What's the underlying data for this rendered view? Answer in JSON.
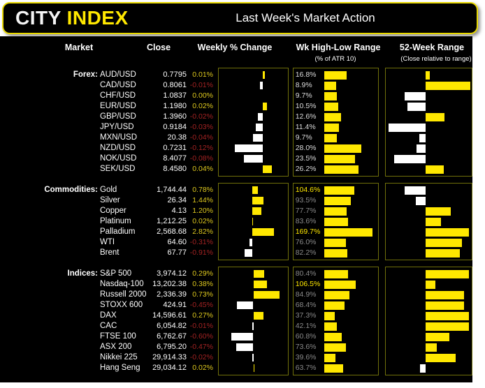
{
  "header": {
    "logo_city": "CITY ",
    "logo_index": "INDEX",
    "title": "Last Week's Market Action"
  },
  "columns": {
    "market": "Market",
    "close": "Close",
    "weekly": "Weekly % Change",
    "hl": "Wk High-Low Range",
    "hl_sub": "(% of ATR 10)",
    "w52": "52-Week Range",
    "w52_sub": "(Close relative to range)"
  },
  "colors": {
    "bar_yellow": "#ffe800",
    "bar_white": "#ffffff",
    "positive_text": "#ddc71e",
    "negative_text": "#a22222",
    "range_gray": "#8a8a8a",
    "range_light": "#dcdcdc",
    "range_highlight": "#ffe800",
    "box_border": "#70700a",
    "header_border": "#e8d800"
  },
  "chart_data": {
    "type": "table",
    "title": "Last Week's Market Action",
    "columns": [
      "Market",
      "Close",
      "Weekly % Change",
      "Wk High-Low Range (% of ATR 10)",
      "52-Week Range (Close relative to range)"
    ],
    "sections": [
      {
        "label": "Forex:",
        "rows": [
          {
            "market": "AUD/USD",
            "close": "0.7795",
            "pct": "0.01%",
            "pct_val": 0.01,
            "hl": "16.8%",
            "hl_val": 16.8,
            "hl_style": "light",
            "w52_val": 0.09
          },
          {
            "market": "CAD/USD",
            "close": "0.8061",
            "pct": "-0.01%",
            "pct_val": -0.01,
            "hl": "8.9%",
            "hl_val": 8.9,
            "hl_style": "light",
            "w52_val": 1.0
          },
          {
            "market": "CHF/USD",
            "close": "1.0837",
            "pct": "0.00%",
            "pct_val": 0.0,
            "hl": "9.7%",
            "hl_val": 9.7,
            "hl_style": "light",
            "w52_val": -0.55
          },
          {
            "market": "EUR/USD",
            "close": "1.1980",
            "pct": "0.02%",
            "pct_val": 0.02,
            "hl": "10.5%",
            "hl_val": 10.5,
            "hl_style": "light",
            "w52_val": -0.48
          },
          {
            "market": "GBP/USD",
            "close": "1.3960",
            "pct": "-0.02%",
            "pct_val": -0.02,
            "hl": "12.6%",
            "hl_val": 12.6,
            "hl_style": "light",
            "w52_val": 0.42
          },
          {
            "market": "JPY/USD",
            "close": "0.9184",
            "pct": "-0.03%",
            "pct_val": -0.03,
            "hl": "11.4%",
            "hl_val": 11.4,
            "hl_style": "light",
            "w52_val": -0.97
          },
          {
            "market": "MXN/USD",
            "close": "20.38",
            "pct": "-0.04%",
            "pct_val": -0.04,
            "hl": "9.7%",
            "hl_val": 9.7,
            "hl_style": "light",
            "w52_val": -0.17
          },
          {
            "market": "NZD/USD",
            "close": "0.7231",
            "pct": "-0.12%",
            "pct_val": -0.12,
            "hl": "28.0%",
            "hl_val": 28.0,
            "hl_style": "light",
            "w52_val": -0.24
          },
          {
            "market": "NOK/USD",
            "close": "8.4077",
            "pct": "-0.08%",
            "pct_val": -0.08,
            "hl": "23.5%",
            "hl_val": 23.5,
            "hl_style": "light",
            "w52_val": -0.83
          },
          {
            "market": "SEK/USD",
            "close": "8.4580",
            "pct": "0.04%",
            "pct_val": 0.04,
            "hl": "26.2%",
            "hl_val": 26.2,
            "hl_style": "light",
            "w52_val": 0.4
          }
        ]
      },
      {
        "label": "Commodities:",
        "rows": [
          {
            "market": "Gold",
            "close": "1,744.44",
            "pct": "0.78%",
            "pct_val": 0.78,
            "hl": "104.6%",
            "hl_val": 104.6,
            "hl_style": "hi",
            "w52_val": -0.55
          },
          {
            "market": "Silver",
            "close": "26.34",
            "pct": "1.44%",
            "pct_val": 1.44,
            "hl": "93.5%",
            "hl_val": 93.5,
            "hl_style": "gray",
            "w52_val": -0.26
          },
          {
            "market": "Copper",
            "close": "4.13",
            "pct": "1.20%",
            "pct_val": 1.2,
            "hl": "77.7%",
            "hl_val": 77.7,
            "hl_style": "gray",
            "w52_val": 0.55
          },
          {
            "market": "Platinum",
            "close": "1,212.25",
            "pct": "0.02%",
            "pct_val": 0.02,
            "hl": "83.6%",
            "hl_val": 83.6,
            "hl_style": "gray",
            "w52_val": 0.34
          },
          {
            "market": "Palladium",
            "close": "2,568.68",
            "pct": "2.82%",
            "pct_val": 2.82,
            "hl": "169.7%",
            "hl_val": 169.7,
            "hl_style": "hi",
            "w52_val": 0.96
          },
          {
            "market": "WTI",
            "close": "64.60",
            "pct": "-0.31%",
            "pct_val": -0.31,
            "hl": "76.0%",
            "hl_val": 76.0,
            "hl_style": "gray",
            "w52_val": 0.81
          },
          {
            "market": "Brent",
            "close": "67.77",
            "pct": "-0.91%",
            "pct_val": -0.91,
            "hl": "82.2%",
            "hl_val": 82.2,
            "hl_style": "gray",
            "w52_val": 0.76
          }
        ]
      },
      {
        "label": "Indices:",
        "rows": [
          {
            "market": "S&P 500",
            "close": "3,974.12",
            "pct": "0.29%",
            "pct_val": 0.29,
            "hl": "80.4%",
            "hl_val": 80.4,
            "hl_style": "gray",
            "w52_val": 0.96
          },
          {
            "market": "Nasdaq-100",
            "close": "13,202.38",
            "pct": "0.38%",
            "pct_val": 0.38,
            "hl": "106.5%",
            "hl_val": 106.5,
            "hl_style": "hi",
            "w52_val": 0.21
          },
          {
            "market": "Russell 2000",
            "close": "2,336.39",
            "pct": "0.73%",
            "pct_val": 0.73,
            "hl": "84.9%",
            "hl_val": 84.9,
            "hl_style": "gray",
            "w52_val": 0.85
          },
          {
            "market": "STOXX 600",
            "close": "424.91",
            "pct": "-0.45%",
            "pct_val": -0.45,
            "hl": "68.4%",
            "hl_val": 68.4,
            "hl_style": "gray",
            "w52_val": 0.85
          },
          {
            "market": "DAX",
            "close": "14,596.61",
            "pct": "0.27%",
            "pct_val": 0.27,
            "hl": "37.3%",
            "hl_val": 37.3,
            "hl_style": "gray",
            "w52_val": 0.96
          },
          {
            "market": "CAC",
            "close": "6,054.82",
            "pct": "-0.01%",
            "pct_val": -0.01,
            "hl": "42.1%",
            "hl_val": 42.1,
            "hl_style": "gray",
            "w52_val": 0.96
          },
          {
            "market": "FTSE 100",
            "close": "6,762.67",
            "pct": "-0.60%",
            "pct_val": -0.6,
            "hl": "60.8%",
            "hl_val": 60.8,
            "hl_style": "gray",
            "w52_val": 0.52
          },
          {
            "market": "ASX 200",
            "close": "6,795.20",
            "pct": "-0.47%",
            "pct_val": -0.47,
            "hl": "73.6%",
            "hl_val": 73.6,
            "hl_style": "gray",
            "w52_val": 0.24
          },
          {
            "market": "Nikkei 225",
            "close": "29,914.33",
            "pct": "-0.02%",
            "pct_val": -0.02,
            "hl": "39.6%",
            "hl_val": 39.6,
            "hl_style": "gray",
            "w52_val": 0.67
          },
          {
            "market": "Hang Seng",
            "close": "29,034.12",
            "pct": "0.02%",
            "pct_val": 0.02,
            "hl": "63.7%",
            "hl_val": 63.7,
            "hl_style": "gray",
            "w52_val": -0.15
          }
        ]
      }
    ]
  }
}
